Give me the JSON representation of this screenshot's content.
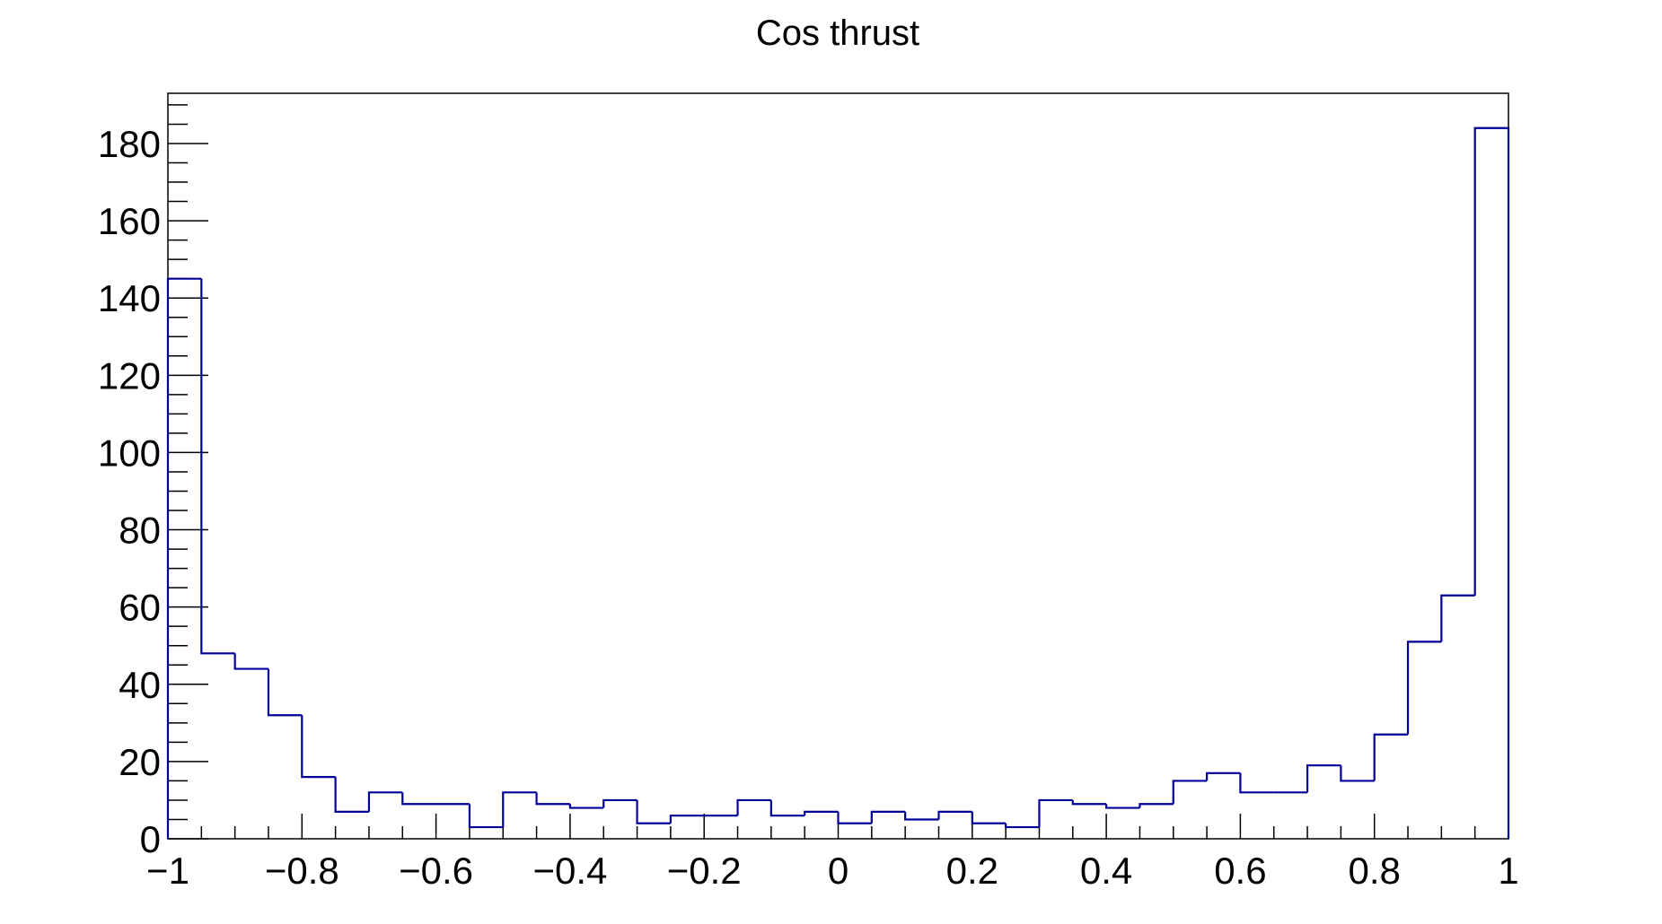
{
  "chart_data": {
    "type": "bar",
    "subtype": "step-histogram",
    "title": "Cos thrust",
    "xlabel": "",
    "ylabel": "",
    "xlim": [
      -1,
      1
    ],
    "ylim": [
      0,
      193
    ],
    "bin_edges_start": -1,
    "bin_width": 0.05,
    "values": [
      145,
      48,
      44,
      32,
      16,
      7,
      12,
      9,
      9,
      3,
      12,
      9,
      8,
      10,
      4,
      6,
      6,
      10,
      6,
      7,
      4,
      7,
      5,
      7,
      4,
      3,
      10,
      9,
      8,
      9,
      15,
      17,
      12,
      12,
      19,
      15,
      27,
      51,
      63,
      184
    ],
    "line_color": "#000099",
    "grid": false,
    "legend": "none",
    "x_ticks": [
      {
        "value": -1,
        "label": "−1"
      },
      {
        "value": -0.8,
        "label": "−0.8"
      },
      {
        "value": -0.6,
        "label": "−0.6"
      },
      {
        "value": -0.4,
        "label": "−0.4"
      },
      {
        "value": -0.2,
        "label": "−0.2"
      },
      {
        "value": 0,
        "label": "0"
      },
      {
        "value": 0.2,
        "label": "0.2"
      },
      {
        "value": 0.4,
        "label": "0.4"
      },
      {
        "value": 0.6,
        "label": "0.6"
      },
      {
        "value": 0.8,
        "label": "0.8"
      },
      {
        "value": 1,
        "label": "1"
      }
    ],
    "y_ticks": [
      {
        "value": 0,
        "label": "0"
      },
      {
        "value": 20,
        "label": "20"
      },
      {
        "value": 40,
        "label": "40"
      },
      {
        "value": 60,
        "label": "60"
      },
      {
        "value": 80,
        "label": "80"
      },
      {
        "value": 100,
        "label": "100"
      },
      {
        "value": 120,
        "label": "120"
      },
      {
        "value": 140,
        "label": "140"
      },
      {
        "value": 160,
        "label": "160"
      },
      {
        "value": 180,
        "label": "180"
      }
    ]
  }
}
